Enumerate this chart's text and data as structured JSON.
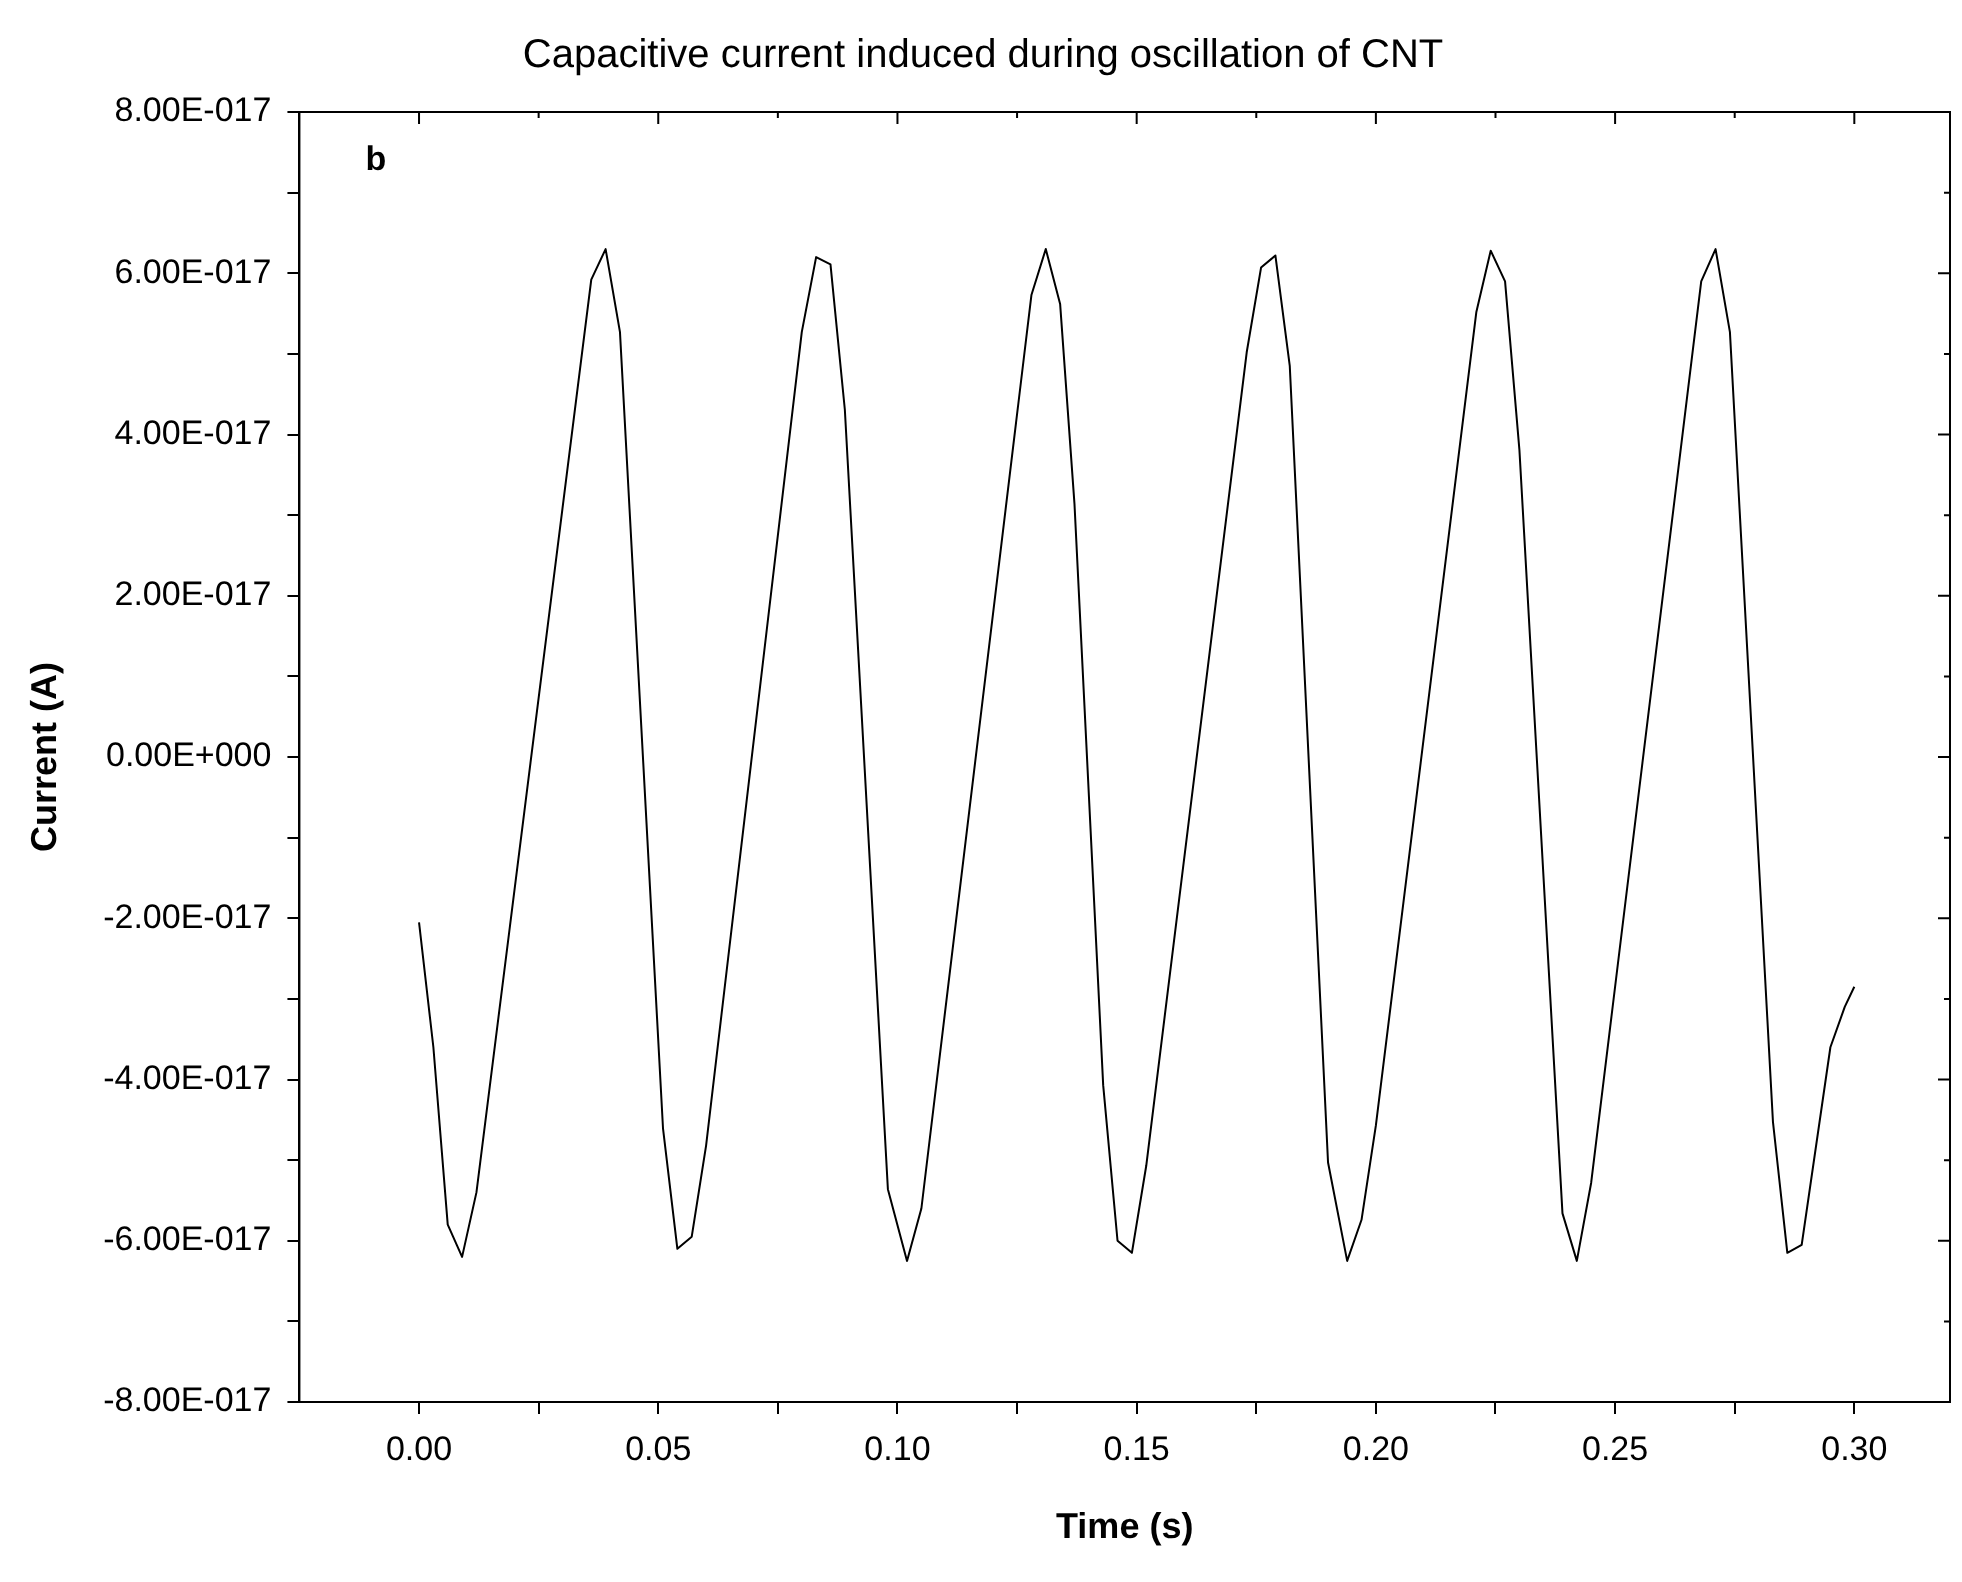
{
  "chart_data": {
    "type": "line",
    "title": "Capacitive current induced during oscillation of CNT",
    "xlabel": "Time (s)",
    "ylabel": "Current (A)",
    "annotations": [
      "b"
    ],
    "xlim": [
      -0.025,
      0.32
    ],
    "xticks": [
      {
        "value": 0,
        "label": "0.00"
      },
      {
        "value": 0.025,
        "label": null
      },
      {
        "value": 0.05,
        "label": "0.05"
      },
      {
        "value": 0.075,
        "label": null
      },
      {
        "value": 0.1,
        "label": "0.10"
      },
      {
        "value": 0.125,
        "label": null
      },
      {
        "value": 0.15,
        "label": "0.15"
      },
      {
        "value": 0.175,
        "label": null
      },
      {
        "value": 0.2,
        "label": "0.20"
      },
      {
        "value": 0.225,
        "label": null
      },
      {
        "value": 0.25,
        "label": "0.25"
      },
      {
        "value": 0.275,
        "label": null
      },
      {
        "value": 0.3,
        "label": "0.30"
      }
    ],
    "ylim": [
      -8e-17,
      8e-17
    ],
    "yticks": [
      {
        "value": -8e-17,
        "label": "-8.00E-017"
      },
      {
        "value": -7e-17,
        "label": null
      },
      {
        "value": -6e-17,
        "label": "-6.00E-017"
      },
      {
        "value": -5e-17,
        "label": null
      },
      {
        "value": -4e-17,
        "label": "-4.00E-017"
      },
      {
        "value": -3e-17,
        "label": null
      },
      {
        "value": -2e-17,
        "label": "-2.00E-017"
      },
      {
        "value": -1e-17,
        "label": null
      },
      {
        "value": 0,
        "label": "0.00E+000"
      },
      {
        "value": 1e-17,
        "label": null
      },
      {
        "value": 2e-17,
        "label": "2.00E-017"
      },
      {
        "value": 3e-17,
        "label": null
      },
      {
        "value": 4e-17,
        "label": "4.00E-017"
      },
      {
        "value": 5e-17,
        "label": null
      },
      {
        "value": 6e-17,
        "label": "6.00E-017"
      },
      {
        "value": 7e-17,
        "label": null
      },
      {
        "value": 8e-17,
        "label": "8.00E-017"
      }
    ],
    "series": [
      {
        "color": "#000000",
        "x": [
          0,
          0.003,
          0.006,
          0.009,
          0.012,
          0.036,
          0.039,
          0.042,
          0.051,
          0.054,
          0.057,
          0.06,
          0.08,
          0.083,
          0.086,
          0.089,
          0.098,
          0.102,
          0.105,
          0.128,
          0.131,
          0.134,
          0.137,
          0.143,
          0.146,
          0.149,
          0.152,
          0.173,
          0.176,
          0.179,
          0.182,
          0.19,
          0.194,
          0.197,
          0.2,
          0.221,
          0.224,
          0.227,
          0.23,
          0.239,
          0.242,
          0.245,
          0.268,
          0.271,
          0.274,
          0.283,
          0.286,
          0.289,
          0.295,
          0.298,
          0.3
        ],
        "values": [
          -2.05e-17,
          -3.6e-17,
          -5.8e-17,
          -6.2e-17,
          -5.4e-17,
          5.92e-17,
          6.3e-17,
          5.27e-17,
          -4.61e-17,
          -6.1e-17,
          -5.95e-17,
          -4.82e-17,
          5.27e-17,
          6.2e-17,
          6.11e-17,
          4.31e-17,
          -5.36e-17,
          -6.25e-17,
          -5.6e-17,
          5.73e-17,
          6.3e-17,
          5.62e-17,
          3.14e-17,
          -4.07e-17,
          -6e-17,
          -6.15e-17,
          -5.07e-17,
          5.02e-17,
          6.07e-17,
          6.22e-17,
          4.85e-17,
          -5.03e-17,
          -6.25e-17,
          -5.74e-17,
          -4.57e-17,
          5.52e-17,
          6.28e-17,
          5.9e-17,
          3.81e-17,
          -5.66e-17,
          -6.25e-17,
          -5.28e-17,
          5.9e-17,
          6.3e-17,
          5.27e-17,
          -4.53e-17,
          -6.15e-17,
          -6.05e-17,
          -3.6e-17,
          -3.1e-17,
          -2.85e-17
        ]
      }
    ]
  }
}
